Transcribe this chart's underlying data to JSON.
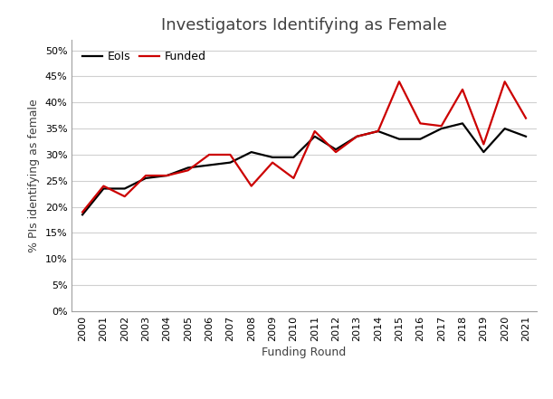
{
  "title": "Investigators Identifying as Female",
  "xlabel": "Funding Round",
  "ylabel": "% PIs identifying as female",
  "years": [
    2000,
    2001,
    2002,
    2003,
    2004,
    2005,
    2006,
    2007,
    2008,
    2009,
    2010,
    2011,
    2012,
    2013,
    2014,
    2015,
    2016,
    2017,
    2018,
    2019,
    2020,
    2021
  ],
  "eols": [
    0.185,
    0.235,
    0.235,
    0.255,
    0.26,
    0.275,
    0.28,
    0.285,
    0.305,
    0.295,
    0.295,
    0.335,
    0.31,
    0.335,
    0.345,
    0.33,
    0.33,
    0.35,
    0.36,
    0.305,
    0.35,
    0.335
  ],
  "funded": [
    0.19,
    0.24,
    0.22,
    0.26,
    0.26,
    0.27,
    0.3,
    0.3,
    0.24,
    0.285,
    0.255,
    0.345,
    0.305,
    0.335,
    0.345,
    0.44,
    0.36,
    0.355,
    0.425,
    0.32,
    0.44,
    0.37
  ],
  "eols_color": "#000000",
  "funded_color": "#cc0000",
  "eols_label": "EoIs",
  "funded_label": "Funded",
  "ylim": [
    0,
    0.52
  ],
  "yticks": [
    0.0,
    0.05,
    0.1,
    0.15,
    0.2,
    0.25,
    0.3,
    0.35,
    0.4,
    0.45,
    0.5
  ],
  "background_color": "#ffffff",
  "grid_color": "#d0d0d0",
  "title_fontsize": 13,
  "axis_label_fontsize": 9,
  "tick_fontsize": 8,
  "legend_fontsize": 9,
  "line_width": 1.6
}
